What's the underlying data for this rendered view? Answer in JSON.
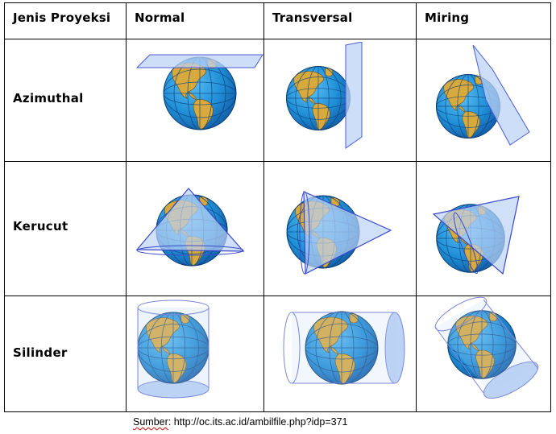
{
  "header": {
    "col_label": "Jenis Proyeksi",
    "columns": [
      "Normal",
      "Transversal",
      "Miring"
    ]
  },
  "rows": [
    "Azimuthal",
    "Kerucut",
    "Silinder"
  ],
  "caption": {
    "prefix": "Sumber",
    "text": ": http://oc.its.ac.id/ambilfile.php?idp=371"
  },
  "colors": {
    "ocean": "#1f8fd6",
    "land": "#d8a93c",
    "plane": "#bcd3f5",
    "outline": "#4a5bd6"
  }
}
